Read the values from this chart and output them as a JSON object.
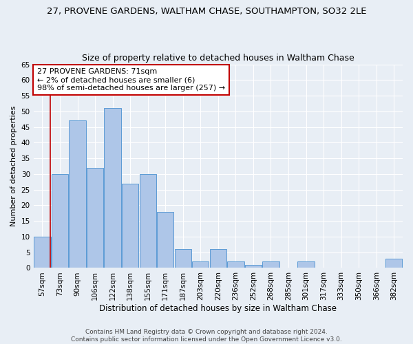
{
  "title": "27, PROVENE GARDENS, WALTHAM CHASE, SOUTHAMPTON, SO32 2LE",
  "subtitle": "Size of property relative to detached houses in Waltham Chase",
  "xlabel": "Distribution of detached houses by size in Waltham Chase",
  "ylabel": "Number of detached properties",
  "categories": [
    "57sqm",
    "73sqm",
    "90sqm",
    "106sqm",
    "122sqm",
    "138sqm",
    "155sqm",
    "171sqm",
    "187sqm",
    "203sqm",
    "220sqm",
    "236sqm",
    "252sqm",
    "268sqm",
    "285sqm",
    "301sqm",
    "317sqm",
    "333sqm",
    "350sqm",
    "366sqm",
    "382sqm"
  ],
  "values": [
    10,
    30,
    47,
    32,
    51,
    27,
    30,
    18,
    6,
    2,
    6,
    2,
    1,
    2,
    0,
    2,
    0,
    0,
    0,
    0,
    3
  ],
  "bar_color": "#aec6e8",
  "bar_edge_color": "#5b9bd5",
  "highlight_color": "#c00000",
  "annotation_text": "27 PROVENE GARDENS: 71sqm\n← 2% of detached houses are smaller (6)\n98% of semi-detached houses are larger (257) →",
  "annotation_box_color": "#ffffff",
  "annotation_box_edge": "#c00000",
  "ylim": [
    0,
    65
  ],
  "yticks": [
    0,
    5,
    10,
    15,
    20,
    25,
    30,
    35,
    40,
    45,
    50,
    55,
    60,
    65
  ],
  "bg_color": "#e8eef5",
  "grid_color": "#ffffff",
  "footer": "Contains HM Land Registry data © Crown copyright and database right 2024.\nContains public sector information licensed under the Open Government Licence v3.0.",
  "title_fontsize": 9.5,
  "subtitle_fontsize": 9,
  "xlabel_fontsize": 8.5,
  "ylabel_fontsize": 8,
  "tick_fontsize": 7.5,
  "annotation_fontsize": 8,
  "footer_fontsize": 6.5
}
